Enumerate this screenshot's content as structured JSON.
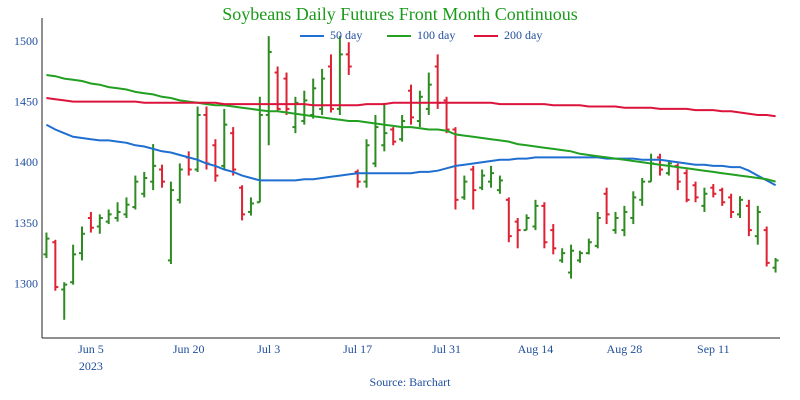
{
  "chart_data": {
    "type": "ohlc",
    "title": "Soybeans Daily Futures Front Month Continuous",
    "source": "Source: Barchart",
    "year_label": "2023",
    "categories": [
      null,
      null,
      null,
      null,
      null,
      "Jun 5",
      null,
      null,
      null,
      null,
      null,
      null,
      null,
      null,
      null,
      null,
      "Jun 20",
      null,
      null,
      null,
      null,
      null,
      null,
      null,
      null,
      "Jul 3",
      null,
      null,
      null,
      null,
      null,
      null,
      null,
      null,
      null,
      "Jul 17",
      null,
      null,
      null,
      null,
      null,
      null,
      null,
      null,
      null,
      "Jul 31",
      null,
      null,
      null,
      null,
      null,
      null,
      null,
      null,
      null,
      "Aug 14",
      null,
      null,
      null,
      null,
      null,
      null,
      null,
      null,
      null,
      "Aug 28",
      null,
      null,
      null,
      null,
      null,
      null,
      null,
      null,
      null,
      "Sep 11",
      null,
      null,
      null,
      null,
      null,
      null,
      null
    ],
    "ohlc": {
      "up_color": "#2e8b22",
      "down_color": "#dd2233",
      "open": [
        1325,
        1335,
        1296,
        1302,
        1326,
        1355,
        1348,
        1352,
        1355,
        1358,
        1364,
        1375,
        1385,
        1395,
        1320,
        1370,
        1405,
        1395,
        1440,
        1415,
        1398,
        1425,
        1380,
        1360,
        1368,
        1440,
        1475,
        1470,
        1430,
        1435,
        1440,
        1445,
        1480,
        1445,
        1490,
        1393,
        1385,
        1400,
        1415,
        1428,
        1420,
        1460,
        1435,
        1445,
        1480,
        1452,
        1428,
        1372,
        1395,
        1380,
        1385,
        1378,
        1370,
        1352,
        1345,
        1348,
        1365,
        1345,
        1320,
        1310,
        1320,
        1326,
        1332,
        1375,
        1345,
        1345,
        1355,
        1370,
        1385,
        1405,
        1392,
        1398,
        1392,
        1382,
        1365,
        1380,
        1378,
        1372,
        1358,
        1365,
        1340,
        1345,
        1314
      ],
      "high": [
        1343,
        1337,
        1302,
        1333,
        1348,
        1360,
        1358,
        1362,
        1368,
        1372,
        1390,
        1393,
        1416,
        1399,
        1385,
        1400,
        1410,
        1447,
        1447,
        1420,
        1445,
        1430,
        1382,
        1372,
        1455,
        1505,
        1480,
        1475,
        1455,
        1460,
        1470,
        1478,
        1490,
        1505,
        1500,
        1395,
        1420,
        1440,
        1450,
        1430,
        1440,
        1465,
        1460,
        1475,
        1490,
        1455,
        1430,
        1390,
        1398,
        1395,
        1398,
        1390,
        1372,
        1355,
        1358,
        1370,
        1368,
        1350,
        1330,
        1333,
        1328,
        1338,
        1360,
        1380,
        1360,
        1365,
        1377,
        1388,
        1408,
        1408,
        1402,
        1400,
        1395,
        1385,
        1380,
        1383,
        1380,
        1375,
        1373,
        1370,
        1365,
        1348,
        1322
      ],
      "low": [
        1322,
        1295,
        1271,
        1300,
        1320,
        1343,
        1342,
        1350,
        1352,
        1355,
        1362,
        1372,
        1378,
        1380,
        1317,
        1367,
        1390,
        1393,
        1395,
        1385,
        1395,
        1390,
        1353,
        1357,
        1368,
        1415,
        1443,
        1440,
        1425,
        1432,
        1437,
        1440,
        1442,
        1440,
        1473,
        1380,
        1380,
        1397,
        1410,
        1415,
        1418,
        1432,
        1430,
        1440,
        1445,
        1425,
        1362,
        1370,
        1362,
        1378,
        1380,
        1375,
        1335,
        1330,
        1345,
        1345,
        1330,
        1325,
        1318,
        1305,
        1318,
        1325,
        1330,
        1350,
        1342,
        1340,
        1350,
        1365,
        1385,
        1390,
        1390,
        1378,
        1368,
        1368,
        1360,
        1372,
        1365,
        1355,
        1355,
        1340,
        1333,
        1315,
        1310
      ],
      "close": [
        1338,
        1298,
        1300,
        1325,
        1342,
        1347,
        1355,
        1358,
        1360,
        1366,
        1385,
        1388,
        1398,
        1385,
        1378,
        1395,
        1395,
        1440,
        1400,
        1390,
        1432,
        1395,
        1358,
        1367,
        1440,
        1492,
        1445,
        1445,
        1450,
        1452,
        1462,
        1470,
        1445,
        1490,
        1480,
        1385,
        1415,
        1430,
        1425,
        1418,
        1435,
        1438,
        1455,
        1465,
        1450,
        1428,
        1370,
        1385,
        1378,
        1390,
        1392,
        1386,
        1340,
        1345,
        1355,
        1365,
        1335,
        1330,
        1326,
        1328,
        1326,
        1335,
        1355,
        1358,
        1355,
        1360,
        1372,
        1385,
        1400,
        1395,
        1400,
        1385,
        1370,
        1372,
        1375,
        1375,
        1368,
        1360,
        1370,
        1345,
        1360,
        1318,
        1320
      ]
    },
    "series": [
      {
        "name": "50 day",
        "color": "#1f6fd0",
        "values": [
          1432,
          1428,
          1425,
          1422,
          1421,
          1420,
          1419,
          1419,
          1418,
          1417,
          1415,
          1414,
          1412,
          1410,
          1409,
          1407,
          1405,
          1403,
          1400,
          1398,
          1395,
          1393,
          1390,
          1388,
          1386,
          1386,
          1386,
          1386,
          1386,
          1387,
          1387,
          1388,
          1389,
          1390,
          1391,
          1392,
          1392,
          1392,
          1392,
          1392,
          1392,
          1392,
          1393,
          1393,
          1394,
          1396,
          1398,
          1399,
          1400,
          1401,
          1402,
          1403,
          1403,
          1404,
          1404,
          1405,
          1405,
          1405,
          1405,
          1405,
          1405,
          1405,
          1405,
          1404,
          1404,
          1404,
          1404,
          1403,
          1403,
          1403,
          1402,
          1401,
          1400,
          1399,
          1399,
          1398,
          1398,
          1397,
          1397,
          1394,
          1390,
          1386,
          1382
        ]
      },
      {
        "name": "100 day",
        "color": "#22a022",
        "values": [
          1473,
          1472,
          1470,
          1469,
          1468,
          1466,
          1465,
          1463,
          1462,
          1461,
          1459,
          1458,
          1457,
          1455,
          1454,
          1452,
          1451,
          1450,
          1449,
          1448,
          1448,
          1447,
          1446,
          1445,
          1444,
          1443,
          1443,
          1442,
          1441,
          1440,
          1439,
          1438,
          1437,
          1436,
          1435,
          1435,
          1434,
          1433,
          1432,
          1431,
          1430,
          1430,
          1429,
          1428,
          1428,
          1427,
          1424,
          1423,
          1422,
          1421,
          1420,
          1419,
          1418,
          1416,
          1415,
          1414,
          1413,
          1412,
          1411,
          1410,
          1408,
          1407,
          1406,
          1405,
          1404,
          1403,
          1402,
          1401,
          1400,
          1399,
          1398,
          1397,
          1396,
          1395,
          1394,
          1393,
          1392,
          1391,
          1390,
          1389,
          1388,
          1387,
          1385
        ]
      },
      {
        "name": "200 day",
        "color": "#dc143c",
        "values": [
          1454,
          1453,
          1452,
          1451,
          1451,
          1451,
          1451,
          1451,
          1451,
          1451,
          1451,
          1450,
          1450,
          1450,
          1450,
          1450,
          1450,
          1450,
          1450,
          1450,
          1449,
          1449,
          1449,
          1449,
          1449,
          1449,
          1449,
          1449,
          1449,
          1449,
          1448,
          1448,
          1448,
          1448,
          1448,
          1448,
          1449,
          1449,
          1449,
          1450,
          1450,
          1450,
          1450,
          1450,
          1450,
          1450,
          1450,
          1450,
          1450,
          1450,
          1450,
          1449,
          1449,
          1449,
          1449,
          1449,
          1449,
          1448,
          1448,
          1448,
          1448,
          1447,
          1447,
          1447,
          1447,
          1446,
          1446,
          1446,
          1446,
          1445,
          1445,
          1445,
          1445,
          1444,
          1444,
          1444,
          1443,
          1443,
          1442,
          1441,
          1440,
          1440,
          1439
        ]
      }
    ],
    "ylim": [
      1256,
      1520
    ],
    "yticks": [
      1300,
      1350,
      1400,
      1450,
      1500
    ],
    "grid": false
  }
}
